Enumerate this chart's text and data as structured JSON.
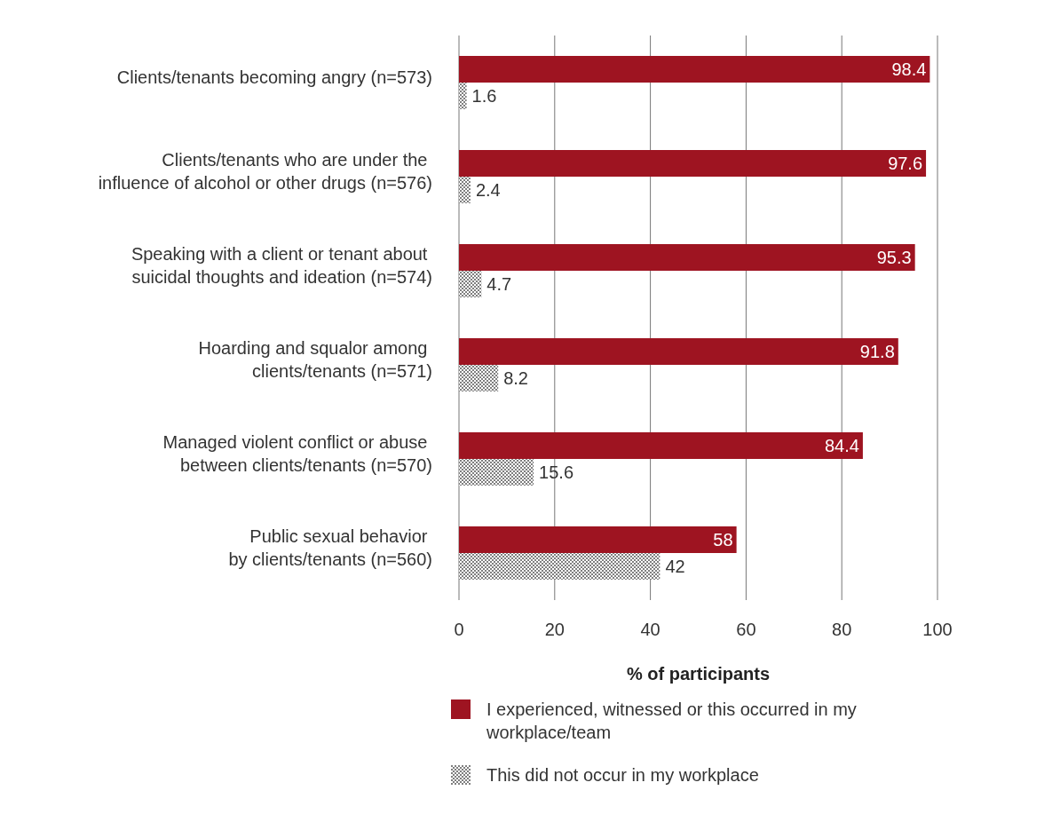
{
  "chart_data": {
    "type": "bar",
    "orientation": "horizontal",
    "xlabel": "% of participants",
    "categories": [
      "Clients/tenants becoming angry  (n=573)",
      "Clients/tenants who are under the \ninfluence of alcohol or other drugs (n=576)",
      "Speaking with a client or tenant about \nsuicidal thoughts and ideation (n=574)",
      "Hoarding and squalor among \nclients/tenants  (n=571)",
      "Managed violent conflict or abuse \nbetween clients/tenants (n=570)",
      "Public sexual behavior \nby clients/tenants  (n=560)"
    ],
    "series": [
      {
        "name": "I experienced, witnessed or this occurred in my workplace/team",
        "color": "#9e1421",
        "values": [
          98.4,
          97.6,
          95.3,
          91.8,
          84.4,
          58
        ]
      },
      {
        "name": "This did not occur in my workplace",
        "color": "#7f7f7f",
        "values": [
          1.6,
          2.4,
          4.7,
          8.2,
          15.6,
          42
        ]
      }
    ],
    "xlim": [
      0,
      100
    ],
    "xticks": [
      0,
      20,
      40,
      60,
      80,
      100
    ],
    "grid": "x",
    "legend": "bottom",
    "data_labels": true
  }
}
